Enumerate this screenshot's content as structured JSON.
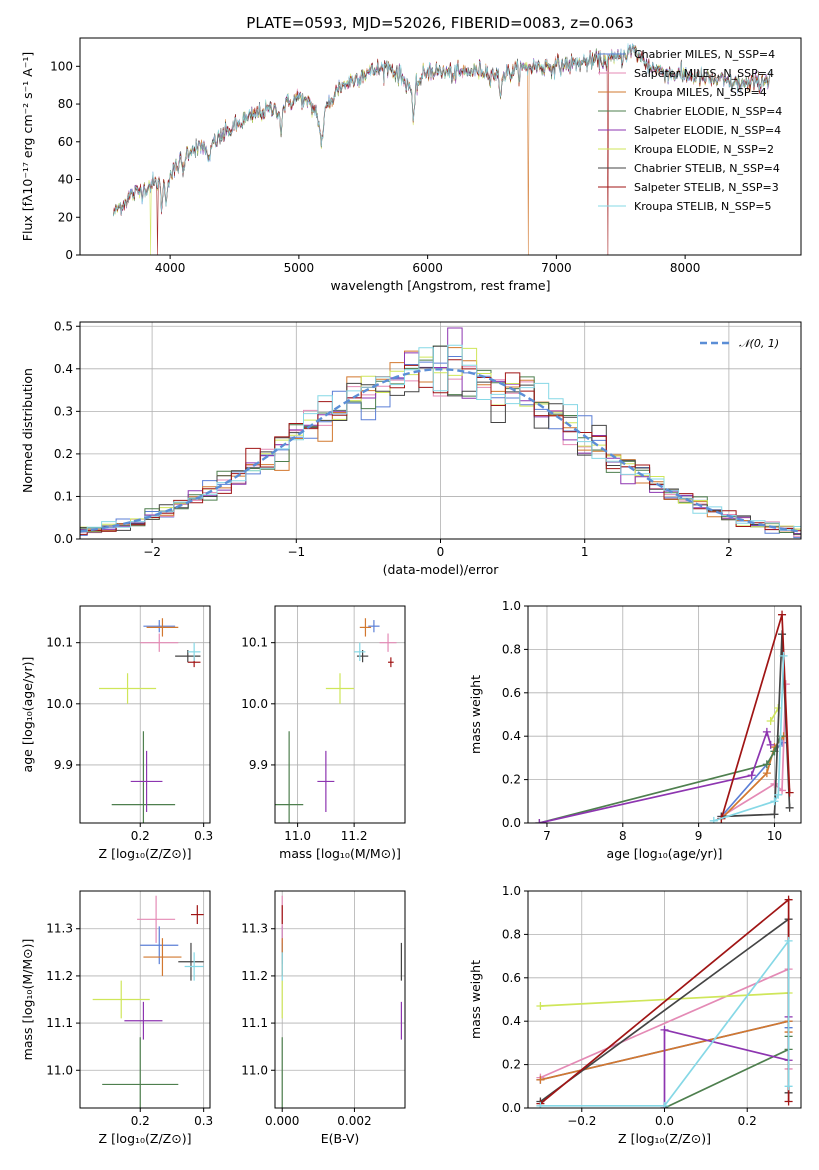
{
  "figure_title": "PLATE=0593, MJD=52026, FIBERID=0083, z=0.063",
  "colors": {
    "Chabrier MILES": "#5b7fd6",
    "Salpeter MILES": "#e48ab5",
    "Kroupa MILES": "#d2782f",
    "Chabrier ELODIE": "#4e7f4e",
    "Salpeter ELODIE": "#8d35b0",
    "Kroupa ELODIE": "#cfe65a",
    "Chabrier STELIB": "#444444",
    "Salpeter STELIB": "#a01515",
    "Kroupa STELIB": "#86d8e6"
  },
  "chart_data": [
    {
      "id": "spectrum",
      "type": "line",
      "title": "",
      "xlabel": "wavelength [Angstrom, rest frame]",
      "ylabel": "Flux [fλ10⁻¹⁷ erg cm⁻² s⁻¹ A⁻¹]",
      "xlim": [
        3300,
        8900
      ],
      "ylim": [
        0,
        115
      ],
      "xticks": [
        "4000",
        "5000",
        "6000",
        "7000",
        "8000"
      ],
      "yticks": [
        "0",
        "20",
        "40",
        "60",
        "80",
        "100"
      ],
      "grid": false,
      "legend_position": "top-right",
      "x_nodes": [
        3560,
        3700,
        3850,
        4000,
        4150,
        4300,
        4500,
        4700,
        4860,
        5000,
        5175,
        5300,
        5500,
        5700,
        5890,
        6000,
        6200,
        6400,
        6563,
        6800,
        7000,
        7200,
        7500,
        7700,
        7900,
        8100,
        8300,
        8500,
        8660
      ],
      "y_nodes": [
        22,
        32,
        37,
        42,
        56,
        58,
        68,
        76,
        78,
        84,
        74,
        88,
        96,
        100,
        88,
        98,
        96,
        98,
        95,
        100,
        100,
        102,
        104,
        100,
        96,
        94,
        92,
        90,
        94
      ],
      "series": [
        {
          "name": "Chabrier MILES, N_SSP=4"
        },
        {
          "name": "Salpeter MILES, N_SSP=4"
        },
        {
          "name": "Kroupa MILES, N_SSP=4"
        },
        {
          "name": "Chabrier ELODIE, N_SSP=4"
        },
        {
          "name": "Salpeter ELODIE, N_SSP=4"
        },
        {
          "name": "Kroupa ELODIE, N_SSP=2"
        },
        {
          "name": "Chabrier STELIB, N_SSP=4"
        },
        {
          "name": "Salpeter STELIB, N_SSP=3"
        },
        {
          "name": "Kroupa STELIB, N_SSP=5"
        }
      ],
      "drops_to_zero": [
        {
          "series": "Kroupa ELODIE, N_SSP=2",
          "x": 3850
        },
        {
          "series": "Salpeter STELIB, N_SSP=3",
          "x": 3900
        },
        {
          "series": "Kroupa MILES, N_SSP=4",
          "x": 6780
        },
        {
          "series": "Salpeter STELIB, N_SSP=3",
          "x": 7400
        }
      ]
    },
    {
      "id": "residuals",
      "type": "line",
      "title": "",
      "xlabel": "(data-model)/error",
      "ylabel": "Normed distribution",
      "xlim": [
        -2.5,
        2.5
      ],
      "ylim": [
        0,
        0.51
      ],
      "xticks": [
        "−2",
        "−1",
        "0",
        "1",
        "2"
      ],
      "yticks": [
        "0.0",
        "0.1",
        "0.2",
        "0.3",
        "0.4",
        "0.5"
      ],
      "grid": true,
      "legend_position": "top-right",
      "reference_curve": {
        "name": "𝒩(0, 1)",
        "mu": 0,
        "sigma": 1,
        "color": "#5b8ed6"
      },
      "bin_width": 0.1,
      "step_series": [
        "Chabrier MILES",
        "Salpeter MILES",
        "Kroupa MILES",
        "Chabrier ELODIE",
        "Salpeter ELODIE",
        "Kroupa ELODIE",
        "Chabrier STELIB",
        "Salpeter STELIB",
        "Kroupa STELIB"
      ]
    },
    {
      "id": "age_vs_Z",
      "type": "scatter",
      "xlabel": "Z [log₁₀(Z/Z⊙)]",
      "ylabel": "age  [log₁₀(age/yr)]",
      "xlim": [
        0.105,
        0.31
      ],
      "ylim": [
        9.805,
        10.16
      ],
      "xticks": [
        "0.2",
        "0.3"
      ],
      "yticks": [
        "9.9",
        "10.0",
        "10.1"
      ],
      "grid": true,
      "points": [
        {
          "series": "Chabrier MILES",
          "x": 0.23,
          "y": 10.127,
          "xerr": 0.025,
          "yerr": 0.01
        },
        {
          "series": "Salpeter MILES",
          "x": 0.23,
          "y": 10.1,
          "xerr": 0.03,
          "yerr": 0.015
        },
        {
          "series": "Kroupa MILES",
          "x": 0.235,
          "y": 10.125,
          "xerr": 0.025,
          "yerr": 0.015
        },
        {
          "series": "Chabrier ELODIE",
          "x": 0.205,
          "y": 9.835,
          "xerr": 0.05,
          "yerr": 0.12
        },
        {
          "series": "Salpeter ELODIE",
          "x": 0.21,
          "y": 9.873,
          "xerr": 0.025,
          "yerr": 0.05
        },
        {
          "series": "Kroupa ELODIE",
          "x": 0.18,
          "y": 10.025,
          "xerr": 0.045,
          "yerr": 0.025
        },
        {
          "series": "Chabrier STELIB",
          "x": 0.275,
          "y": 10.078,
          "xerr": 0.02,
          "yerr": 0.01
        },
        {
          "series": "Salpeter STELIB",
          "x": 0.285,
          "y": 10.068,
          "xerr": 0.01,
          "yerr": 0.008
        },
        {
          "series": "Kroupa STELIB",
          "x": 0.285,
          "y": 10.085,
          "xerr": 0.01,
          "yerr": 0.015
        }
      ]
    },
    {
      "id": "age_vs_mass",
      "type": "scatter",
      "xlabel": "mass [log₁₀(M/M⊙)]",
      "ylabel": "",
      "xlim": [
        10.92,
        11.38
      ],
      "ylim": [
        9.805,
        10.16
      ],
      "xticks": [
        "11.0",
        "11.2"
      ],
      "yticks": [
        "9.9",
        "10.0",
        "10.1"
      ],
      "grid": true,
      "points": [
        {
          "series": "Chabrier MILES",
          "x": 11.27,
          "y": 10.127,
          "xerr": 0.02,
          "yerr": 0.01
        },
        {
          "series": "Salpeter MILES",
          "x": 11.32,
          "y": 10.1,
          "xerr": 0.03,
          "yerr": 0.015
        },
        {
          "series": "Kroupa MILES",
          "x": 11.24,
          "y": 10.125,
          "xerr": 0.02,
          "yerr": 0.015
        },
        {
          "series": "Chabrier ELODIE",
          "x": 10.97,
          "y": 9.835,
          "xerr": 0.05,
          "yerr": 0.12
        },
        {
          "series": "Salpeter ELODIE",
          "x": 11.1,
          "y": 9.873,
          "xerr": 0.03,
          "yerr": 0.05
        },
        {
          "series": "Kroupa ELODIE",
          "x": 11.15,
          "y": 10.025,
          "xerr": 0.05,
          "yerr": 0.025
        },
        {
          "series": "Chabrier STELIB",
          "x": 11.23,
          "y": 10.078,
          "xerr": 0.02,
          "yerr": 0.01
        },
        {
          "series": "Salpeter STELIB",
          "x": 11.33,
          "y": 10.068,
          "xerr": 0.01,
          "yerr": 0.008
        },
        {
          "series": "Kroupa STELIB",
          "x": 11.22,
          "y": 10.085,
          "xerr": 0.02,
          "yerr": 0.015
        }
      ]
    },
    {
      "id": "weight_vs_age",
      "type": "line",
      "xlabel": "age  [log₁₀(age/yr)]",
      "ylabel": "mass weight",
      "xlim": [
        6.75,
        10.35
      ],
      "ylim": [
        0,
        1.0
      ],
      "xticks": [
        "7",
        "8",
        "9",
        "10"
      ],
      "yticks": [
        "0.0",
        "0.2",
        "0.4",
        "0.6",
        "0.8",
        "1.0"
      ],
      "grid": true,
      "series": [
        {
          "series": "Chabrier MILES",
          "x": [
            9.3,
            9.9,
            10.0,
            10.1
          ],
          "y": [
            0.03,
            0.27,
            0.33,
            0.37
          ]
        },
        {
          "series": "Salpeter MILES",
          "x": [
            9.3,
            10.0,
            10.1,
            10.15
          ],
          "y": [
            0.03,
            0.18,
            0.15,
            0.64
          ]
        },
        {
          "series": "Kroupa MILES",
          "x": [
            9.3,
            9.9,
            10.0,
            10.12
          ],
          "y": [
            0.02,
            0.23,
            0.35,
            0.4
          ]
        },
        {
          "series": "Chabrier ELODIE",
          "x": [
            6.9,
            9.9,
            10.0,
            10.08
          ],
          "y": [
            0.0,
            0.27,
            0.33,
            0.4
          ]
        },
        {
          "series": "Salpeter ELODIE",
          "x": [
            6.9,
            9.7,
            9.9,
            9.95
          ],
          "y": [
            0.0,
            0.22,
            0.42,
            0.36
          ]
        },
        {
          "series": "Kroupa ELODIE",
          "x": [
            9.95,
            10.05
          ],
          "y": [
            0.47,
            0.53
          ]
        },
        {
          "series": "Chabrier STELIB",
          "x": [
            9.3,
            10.0,
            10.1,
            10.2
          ],
          "y": [
            0.03,
            0.04,
            0.87,
            0.07
          ]
        },
        {
          "series": "Salpeter STELIB",
          "x": [
            9.3,
            10.1,
            10.2
          ],
          "y": [
            0.02,
            0.96,
            0.14
          ]
        },
        {
          "series": "Kroupa STELIB",
          "x": [
            9.2,
            10.0,
            10.05,
            10.12
          ],
          "y": [
            0.01,
            0.1,
            0.13,
            0.77
          ]
        }
      ]
    },
    {
      "id": "mass_vs_Z",
      "type": "scatter",
      "xlabel": "Z [log₁₀(Z/Z⊙)]",
      "ylabel": "mass [log₁₀(M/M⊙)]",
      "xlim": [
        0.105,
        0.31
      ],
      "ylim": [
        10.92,
        11.38
      ],
      "xticks": [
        "0.2",
        "0.3"
      ],
      "yticks": [
        "11.0",
        "11.1",
        "11.2",
        "11.3"
      ],
      "grid": true,
      "points": [
        {
          "series": "Chabrier MILES",
          "x": 0.23,
          "y": 11.265,
          "xerr": 0.03,
          "yerr": 0.04
        },
        {
          "series": "Salpeter MILES",
          "x": 0.225,
          "y": 11.32,
          "xerr": 0.03,
          "yerr": 0.05
        },
        {
          "series": "Kroupa MILES",
          "x": 0.235,
          "y": 11.24,
          "xerr": 0.03,
          "yerr": 0.04
        },
        {
          "series": "Chabrier ELODIE",
          "x": 0.2,
          "y": 10.97,
          "xerr": 0.06,
          "yerr": 0.1
        },
        {
          "series": "Salpeter ELODIE",
          "x": 0.205,
          "y": 11.105,
          "xerr": 0.03,
          "yerr": 0.04
        },
        {
          "series": "Kroupa ELODIE",
          "x": 0.17,
          "y": 11.15,
          "xerr": 0.045,
          "yerr": 0.04
        },
        {
          "series": "Chabrier STELIB",
          "x": 0.28,
          "y": 11.23,
          "xerr": 0.02,
          "yerr": 0.04
        },
        {
          "series": "Salpeter STELIB",
          "x": 0.29,
          "y": 11.33,
          "xerr": 0.01,
          "yerr": 0.02
        },
        {
          "series": "Kroupa STELIB",
          "x": 0.285,
          "y": 11.22,
          "xerr": 0.015,
          "yerr": 0.03
        }
      ]
    },
    {
      "id": "mass_vs_ebv",
      "type": "scatter",
      "xlabel": "E(B-V)",
      "ylabel": "",
      "xlim": [
        -0.0002,
        0.0034
      ],
      "ylim": [
        10.92,
        11.38
      ],
      "xticks": [
        "0.000",
        "0.002"
      ],
      "yticks": [
        "11.0",
        "11.1",
        "11.2",
        "11.3"
      ],
      "grid": true,
      "points": [
        {
          "series": "Chabrier MILES",
          "x": 0.0,
          "y": 11.265,
          "xerr": 0,
          "yerr": 0.04
        },
        {
          "series": "Salpeter MILES",
          "x": 0.0,
          "y": 11.32,
          "xerr": 0,
          "yerr": 0.05
        },
        {
          "series": "Kroupa MILES",
          "x": 0.0,
          "y": 11.24,
          "xerr": 0,
          "yerr": 0.04
        },
        {
          "series": "Chabrier ELODIE",
          "x": 0.0,
          "y": 10.97,
          "xerr": 0,
          "yerr": 0.1
        },
        {
          "series": "Kroupa ELODIE",
          "x": 0.0,
          "y": 11.15,
          "xerr": 0,
          "yerr": 0.04
        },
        {
          "series": "Salpeter STELIB",
          "x": 0.0,
          "y": 11.33,
          "xerr": 0,
          "yerr": 0.02
        },
        {
          "series": "Kroupa STELIB",
          "x": 0.0,
          "y": 11.22,
          "xerr": 0,
          "yerr": 0.03
        },
        {
          "series": "Chabrier STELIB",
          "x": 0.0033,
          "y": 11.23,
          "xerr": 0,
          "yerr": 0.04
        },
        {
          "series": "Salpeter ELODIE",
          "x": 0.0033,
          "y": 11.105,
          "xerr": 0,
          "yerr": 0.04
        }
      ]
    },
    {
      "id": "weight_vs_Z",
      "type": "line",
      "xlabel": "Z [log₁₀(Z/Z⊙)]",
      "ylabel": "mass weight",
      "xlim": [
        -0.33,
        0.33
      ],
      "ylim": [
        0,
        1.0
      ],
      "xticks": [
        "−0.2",
        "0.0",
        "0.2"
      ],
      "yticks": [
        "0.0",
        "0.2",
        "0.4",
        "0.6",
        "0.8",
        "1.0"
      ],
      "grid": true,
      "series": [
        {
          "series": "Chabrier MILES",
          "x": [
            -0.3,
            0.3,
            0.3
          ],
          "y": [
            0.13,
            0.4,
            0.37
          ]
        },
        {
          "series": "Salpeter MILES",
          "x": [
            -0.3,
            0.3,
            0.3
          ],
          "y": [
            0.14,
            0.64,
            0.18
          ]
        },
        {
          "series": "Kroupa MILES",
          "x": [
            -0.3,
            0.3,
            0.3
          ],
          "y": [
            0.13,
            0.4,
            0.35
          ]
        },
        {
          "series": "Chabrier ELODIE",
          "x": [
            0.0,
            0.3,
            0.3
          ],
          "y": [
            0.0,
            0.27,
            0.33
          ]
        },
        {
          "series": "Salpeter ELODIE",
          "x": [
            0.0,
            0.0,
            0.3,
            0.3
          ],
          "y": [
            0.0,
            0.36,
            0.22,
            0.42
          ]
        },
        {
          "series": "Kroupa ELODIE",
          "x": [
            -0.3,
            0.3
          ],
          "y": [
            0.47,
            0.53
          ]
        },
        {
          "series": "Chabrier STELIB",
          "x": [
            -0.3,
            0.3,
            0.3
          ],
          "y": [
            0.03,
            0.87,
            0.07
          ]
        },
        {
          "series": "Salpeter STELIB",
          "x": [
            -0.3,
            0.3,
            0.3
          ],
          "y": [
            0.02,
            0.96,
            0.03
          ]
        },
        {
          "series": "Kroupa STELIB",
          "x": [
            -0.3,
            0.0,
            0.3,
            0.3
          ],
          "y": [
            0.01,
            0.01,
            0.77,
            0.1
          ]
        }
      ]
    }
  ]
}
